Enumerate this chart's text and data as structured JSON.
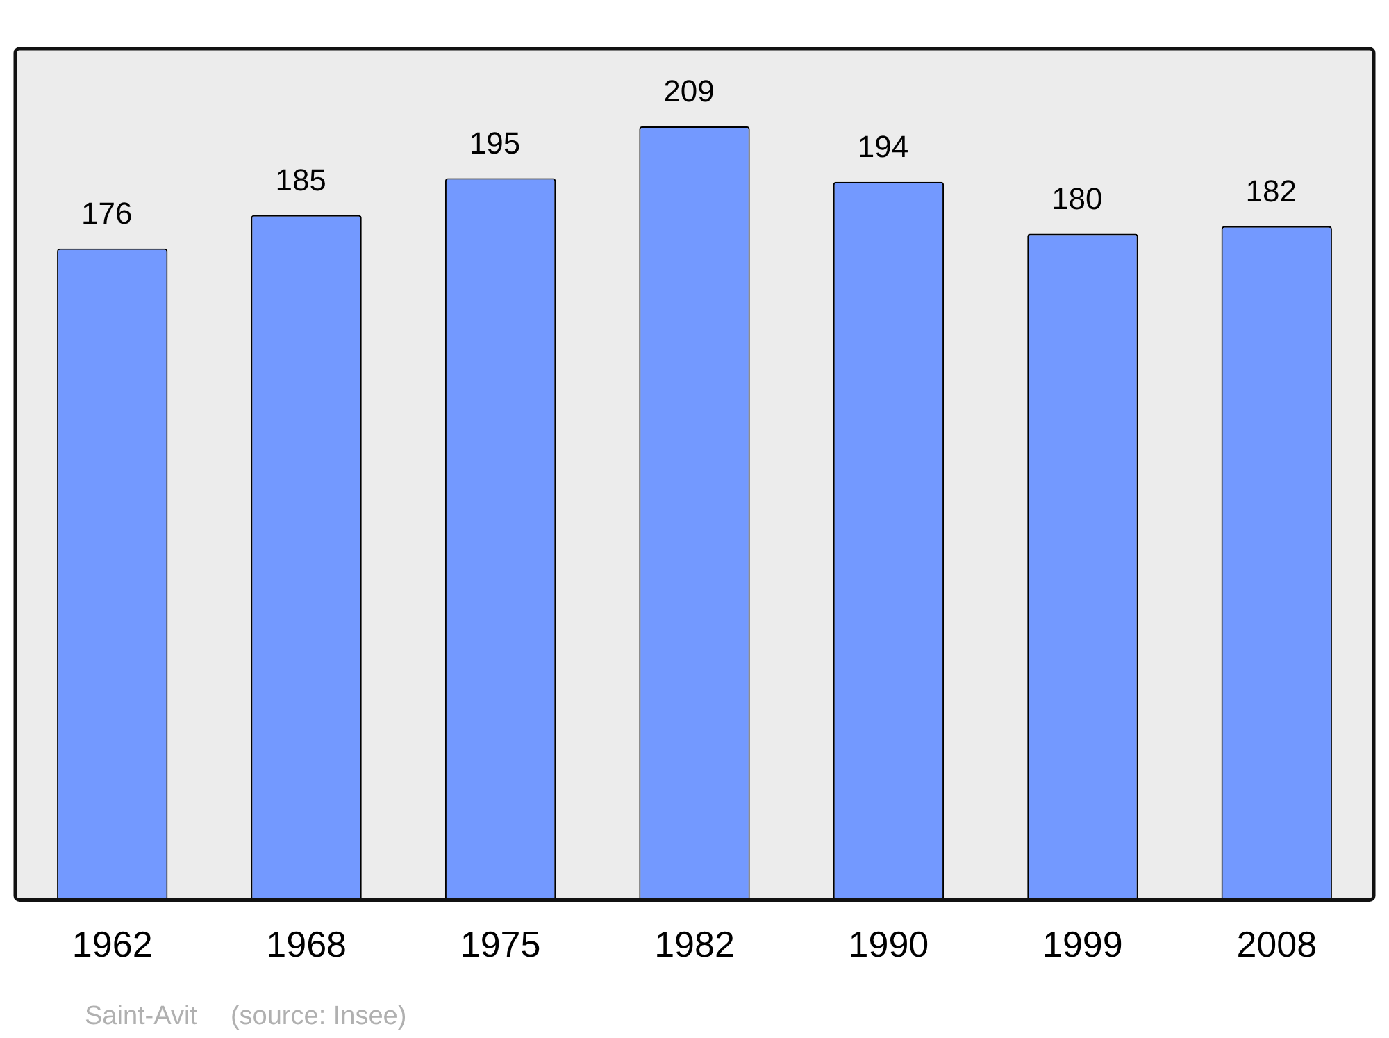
{
  "chart_data": {
    "type": "bar",
    "categories": [
      "1962",
      "1968",
      "1975",
      "1982",
      "1990",
      "1999",
      "2008"
    ],
    "values": [
      176,
      185,
      195,
      209,
      194,
      180,
      182
    ],
    "color": "#7399ff",
    "ylim": [
      0,
      230
    ],
    "data_labels": true,
    "tick_labels": "x",
    "grid": false,
    "legend": false,
    "annotations": [
      "Saint-Avit",
      "(source: Insee)"
    ]
  }
}
